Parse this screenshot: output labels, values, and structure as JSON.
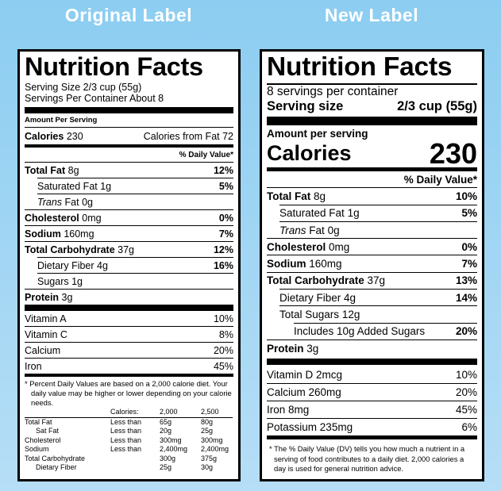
{
  "headings": {
    "original": "Original Label",
    "new": "New Label"
  },
  "original_label": {
    "title": "Nutrition Facts",
    "serving_size": "Serving Size 2/3 cup (55g)",
    "servings_per_container": "Servings Per Container About 8",
    "amount_per_serving": "Amount Per Serving",
    "calories": {
      "label": "Calories",
      "amount": "230",
      "from_fat": "Calories from Fat 72"
    },
    "daily_value_header": "% Daily Value*",
    "nutrients": [
      {
        "name": "Total Fat",
        "amount": "8g",
        "daily_value": "12%"
      },
      {
        "name": "Saturated Fat",
        "amount": "1g",
        "daily_value": "5%"
      },
      {
        "name_italic": "Trans",
        "name": "Fat",
        "amount": "0g"
      },
      {
        "name": "Cholesterol",
        "amount": "0mg",
        "daily_value": "0%"
      },
      {
        "name": "Sodium",
        "amount": "160mg",
        "daily_value": "7%"
      },
      {
        "name": "Total Carbohydrate",
        "amount": "37g",
        "daily_value": "12%"
      },
      {
        "name": "Dietary Fiber",
        "amount": "4g",
        "daily_value": "16%"
      },
      {
        "name": "Sugars",
        "amount": "1g"
      },
      {
        "name": "Protein",
        "amount": "3g"
      }
    ],
    "vitamins": [
      {
        "name": "Vitamin A",
        "daily_value": "10%"
      },
      {
        "name": "Vitamin C",
        "daily_value": "8%"
      },
      {
        "name": "Calcium",
        "daily_value": "20%"
      },
      {
        "name": "Iron",
        "daily_value": "45%"
      }
    ],
    "footnote": "* Percent Daily Values are based on a 2,000 calorie diet. Your daily value may be higher or lower depending on your calorie needs.",
    "reference_table": {
      "header": [
        "Calories:",
        "2,000",
        "2,500"
      ],
      "rows": [
        {
          "nutrient": "Total Fat",
          "limit": "Less than",
          "values": [
            "65g",
            "80g"
          ]
        },
        {
          "nutrient": "Sat Fat",
          "limit": "Less than",
          "values": [
            "20g",
            "25g"
          ]
        },
        {
          "nutrient": "Cholesterol",
          "limit": "Less than",
          "values": [
            "300mg",
            "300mg"
          ]
        },
        {
          "nutrient": "Sodium",
          "limit": "Less than",
          "values": [
            "2,400mg",
            "2,400mg"
          ]
        },
        {
          "nutrient": "Total Carbohydrate",
          "values": [
            "300g",
            "375g"
          ]
        },
        {
          "nutrient": "Dietary Fiber",
          "values": [
            "25g",
            "30g"
          ]
        }
      ]
    }
  },
  "new_label": {
    "title": "Nutrition Facts",
    "servings_per_container": "8 servings per container",
    "serving_size": {
      "label": "Serving size",
      "amount": "2/3 cup (55g)"
    },
    "amount_per_serving": "Amount per serving",
    "calories": {
      "label": "Calories",
      "amount": "230"
    },
    "daily_value_header": "% Daily Value*",
    "nutrients": [
      {
        "name": "Total Fat",
        "amount": "8g",
        "daily_value": "10%"
      },
      {
        "name": "Saturated Fat",
        "amount": "1g",
        "daily_value": "5%"
      },
      {
        "name_italic": "Trans",
        "name": "Fat",
        "amount": "0g"
      },
      {
        "name": "Cholesterol",
        "amount": "0mg",
        "daily_value": "0%"
      },
      {
        "name": "Sodium",
        "amount": "160mg",
        "daily_value": "7%"
      },
      {
        "name": "Total Carbohydrate",
        "amount": "37g",
        "daily_value": "13%"
      },
      {
        "name": "Dietary Fiber",
        "amount": "4g",
        "daily_value": "14%"
      },
      {
        "name": "Total Sugars",
        "amount": "12g"
      },
      {
        "name": "Includes 10g Added Sugars",
        "daily_value": "20%"
      },
      {
        "name": "Protein",
        "amount": "3g"
      }
    ],
    "minerals": [
      {
        "name": "Vitamin D",
        "amount": "2mcg",
        "daily_value": "10%"
      },
      {
        "name": "Calcium",
        "amount": "260mg",
        "daily_value": "20%"
      },
      {
        "name": "Iron",
        "amount": "8mg",
        "daily_value": "45%"
      },
      {
        "name": "Potassium",
        "amount": "235mg",
        "daily_value": "6%"
      }
    ],
    "footnote": "* The % Daily Value (DV) tells you how much a nutrient in a serving of food contributes to a daily diet. 2,000 calories a day is used for general nutrition advice."
  }
}
